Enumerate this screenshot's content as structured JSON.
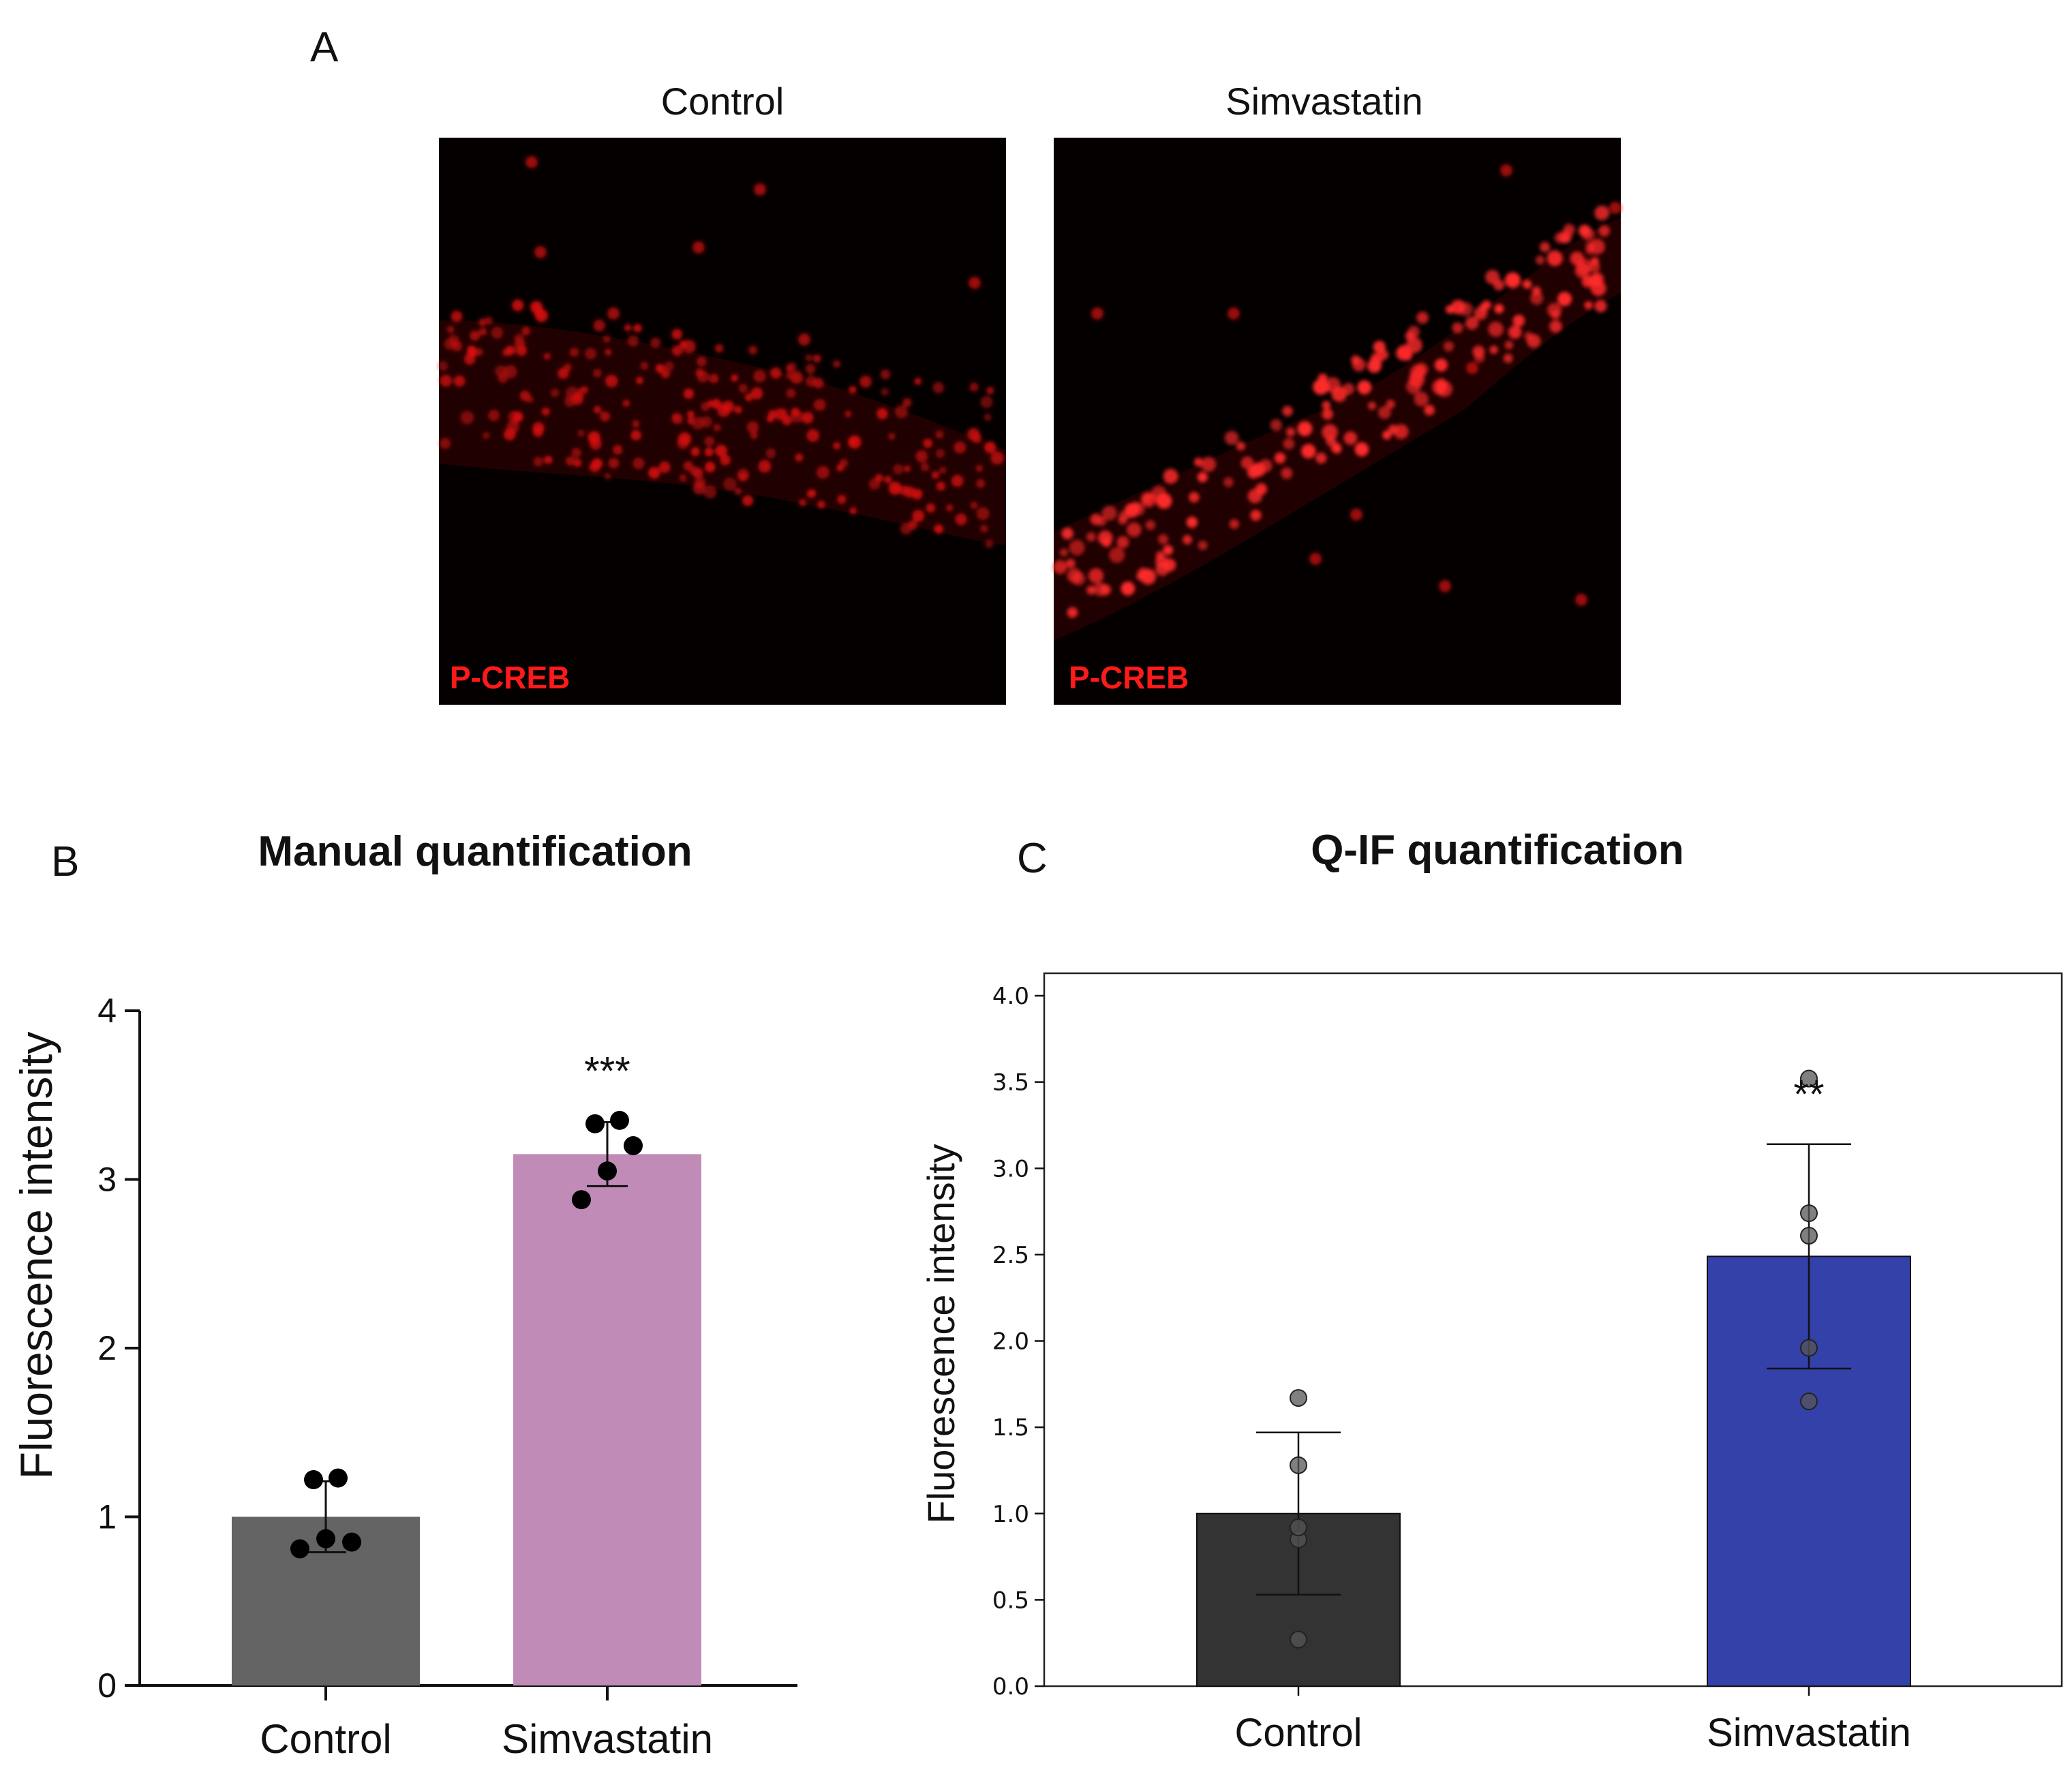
{
  "panelA": {
    "letter": "A",
    "images": [
      {
        "title": "Control",
        "stain_label": "P-CREB"
      },
      {
        "title": "Simvastatin",
        "stain_label": "P-CREB"
      }
    ]
  },
  "colors": {
    "micrograph_bg": "#050000",
    "nuclei": "#e01010",
    "control_bar_B": "#646464",
    "simvastatin_bar_B": "#c18bb8",
    "control_bar_C": "#333333",
    "simvastatin_bar_C": "#3341a8"
  },
  "chart_data": [
    {
      "panel": "B",
      "type": "bar",
      "title": "Manual quantification",
      "xlabel": "",
      "ylabel": "Fluorescence intensity",
      "ylim": [
        0,
        4
      ],
      "yticks": [
        "0",
        "1",
        "2",
        "3",
        "4"
      ],
      "categories": [
        "Control",
        "Simvastatin"
      ],
      "values": [
        1.0,
        3.15
      ],
      "error": [
        0.21,
        0.19
      ],
      "points": [
        [
          0.81,
          0.87,
          0.85,
          1.22,
          1.23
        ],
        [
          2.88,
          3.05,
          3.2,
          3.33,
          3.35
        ]
      ],
      "significance": [
        "",
        "***"
      ]
    },
    {
      "panel": "C",
      "type": "bar",
      "title": "Q-IF quantification",
      "xlabel": "",
      "ylabel": "Fluorescence intensity",
      "ylim": [
        0,
        4.0
      ],
      "yticks": [
        "0.0",
        "0.5",
        "1.0",
        "1.5",
        "2.0",
        "2.5",
        "3.0",
        "3.5",
        "4.0"
      ],
      "categories": [
        "Control",
        "Simvastatin"
      ],
      "values": [
        1.0,
        2.49
      ],
      "error": [
        0.47,
        0.65
      ],
      "points": [
        [
          0.27,
          0.85,
          0.92,
          1.28,
          1.67
        ],
        [
          1.65,
          1.96,
          2.61,
          2.74,
          3.52
        ]
      ],
      "significance": [
        "",
        "**"
      ]
    }
  ]
}
